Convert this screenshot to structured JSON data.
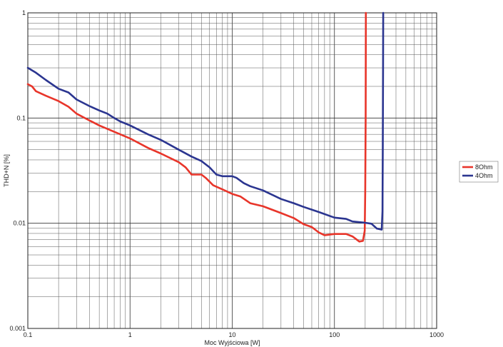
{
  "chart_data": {
    "type": "line",
    "title": "",
    "xlabel": "Moc Wyjściowa [W]",
    "ylabel": "THD+N [%]",
    "x_scale": "log",
    "y_scale": "log",
    "xlim": [
      0.1,
      1000
    ],
    "ylim": [
      0.001,
      1
    ],
    "grid": true,
    "legend_position": "right",
    "x_ticks": [
      {
        "value": 0.1,
        "label": "0.1"
      },
      {
        "value": 1,
        "label": "1"
      },
      {
        "value": 10,
        "label": "10"
      },
      {
        "value": 100,
        "label": "100"
      },
      {
        "value": 1000,
        "label": "1000"
      }
    ],
    "y_ticks": [
      {
        "value": 0.001,
        "label": "0.001"
      },
      {
        "value": 0.01,
        "label": "0.01"
      },
      {
        "value": 0.1,
        "label": "0.1"
      },
      {
        "value": 1,
        "label": "1"
      }
    ],
    "series": [
      {
        "name": "8Ohm",
        "color": "#e8352a",
        "points": [
          [
            0.1,
            0.21
          ],
          [
            0.11,
            0.2
          ],
          [
            0.12,
            0.18
          ],
          [
            0.15,
            0.163
          ],
          [
            0.2,
            0.145
          ],
          [
            0.25,
            0.128
          ],
          [
            0.3,
            0.11
          ],
          [
            0.4,
            0.095
          ],
          [
            0.5,
            0.085
          ],
          [
            0.7,
            0.074
          ],
          [
            1,
            0.064
          ],
          [
            1.5,
            0.052
          ],
          [
            2,
            0.046
          ],
          [
            3,
            0.038
          ],
          [
            3.5,
            0.034
          ],
          [
            4,
            0.029
          ],
          [
            5,
            0.029
          ],
          [
            5.5,
            0.027
          ],
          [
            6.5,
            0.023
          ],
          [
            8,
            0.021
          ],
          [
            10,
            0.019
          ],
          [
            12,
            0.018
          ],
          [
            15,
            0.0155
          ],
          [
            20,
            0.0145
          ],
          [
            30,
            0.0125
          ],
          [
            40,
            0.0112
          ],
          [
            50,
            0.0098
          ],
          [
            60,
            0.0092
          ],
          [
            70,
            0.0082
          ],
          [
            80,
            0.0077
          ],
          [
            100,
            0.0079
          ],
          [
            130,
            0.0079
          ],
          [
            150,
            0.0075
          ],
          [
            175,
            0.0067
          ],
          [
            190,
            0.0068
          ],
          [
            198,
            0.0085
          ],
          [
            200,
            0.02
          ],
          [
            202,
            0.1
          ],
          [
            203,
            1.0
          ]
        ]
      },
      {
        "name": "4Ohm",
        "color": "#2b3590",
        "points": [
          [
            0.1,
            0.3
          ],
          [
            0.12,
            0.27
          ],
          [
            0.15,
            0.23
          ],
          [
            0.2,
            0.19
          ],
          [
            0.25,
            0.175
          ],
          [
            0.3,
            0.15
          ],
          [
            0.4,
            0.13
          ],
          [
            0.5,
            0.118
          ],
          [
            0.6,
            0.11
          ],
          [
            0.7,
            0.1
          ],
          [
            0.8,
            0.093
          ],
          [
            1,
            0.085
          ],
          [
            1.5,
            0.07
          ],
          [
            2,
            0.062
          ],
          [
            3,
            0.05
          ],
          [
            4,
            0.043
          ],
          [
            5,
            0.039
          ],
          [
            6,
            0.034
          ],
          [
            7,
            0.029
          ],
          [
            8,
            0.028
          ],
          [
            10,
            0.028
          ],
          [
            11,
            0.027
          ],
          [
            13,
            0.024
          ],
          [
            15,
            0.0225
          ],
          [
            20,
            0.0205
          ],
          [
            30,
            0.017
          ],
          [
            40,
            0.0155
          ],
          [
            50,
            0.0143
          ],
          [
            70,
            0.0128
          ],
          [
            100,
            0.0113
          ],
          [
            130,
            0.011
          ],
          [
            150,
            0.0104
          ],
          [
            200,
            0.0101
          ],
          [
            230,
            0.0099
          ],
          [
            260,
            0.0089
          ],
          [
            290,
            0.0087
          ],
          [
            295,
            0.013
          ],
          [
            297,
            0.05
          ],
          [
            299,
            0.3
          ],
          [
            300,
            1.0
          ]
        ]
      }
    ]
  }
}
